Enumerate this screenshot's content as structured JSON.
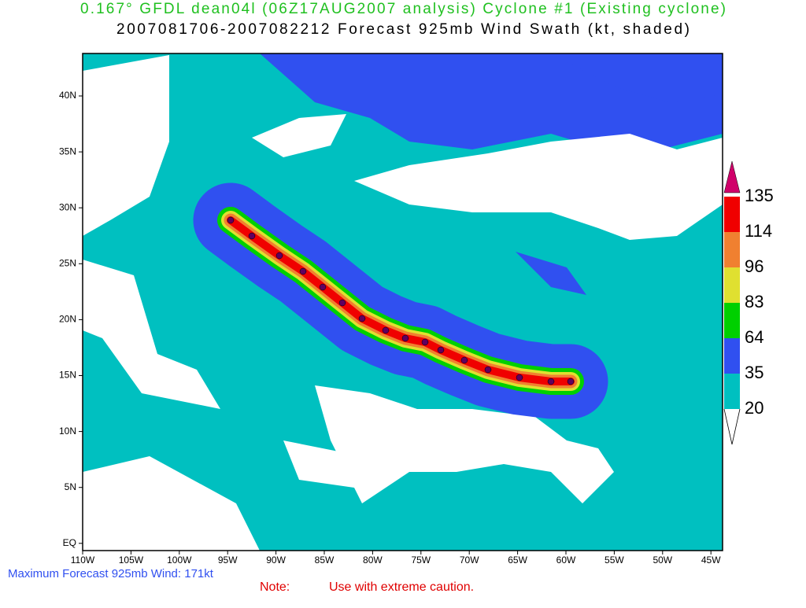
{
  "header": {
    "title": "0.167° GFDL dean04l (06Z17AUG2007 analysis) Cyclone #1 (Existing cyclone)",
    "subtitle": "2007081706-2007082212 Forecast 925mb Wind Swath (kt, shaded)"
  },
  "map": {
    "lat_labels": [
      "40N",
      "35N",
      "30N",
      "25N",
      "20N",
      "15N",
      "10N",
      "5N",
      "EQ"
    ],
    "lon_labels": [
      "110W",
      "105W",
      "100W",
      "95W",
      "90W",
      "85W",
      "80W",
      "75W",
      "70W",
      "65W",
      "60W",
      "55W",
      "50W",
      "45W"
    ]
  },
  "colorbar": {
    "labels": [
      135,
      114,
      96,
      83,
      64,
      35,
      20
    ]
  },
  "footer": {
    "max_wind": "Maximum Forecast 925mb Wind: 171kt",
    "note": "Note:",
    "caution": "Use with extreme caution."
  }
}
